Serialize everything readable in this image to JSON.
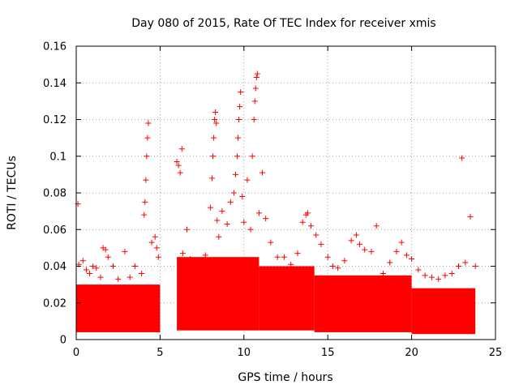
{
  "chart_data": {
    "type": "scatter",
    "title": "Day 080 of 2015, Rate Of TEC Index for receiver xmis",
    "xlabel": "GPS time / hours",
    "ylabel": "ROTI / TECUs",
    "xlim": [
      0,
      25
    ],
    "ylim": [
      0,
      0.16
    ],
    "xticks": [
      0,
      5,
      10,
      15,
      20,
      25
    ],
    "xtick_labels": [
      "0",
      "5",
      "10",
      "15",
      "20",
      "25"
    ],
    "yticks": [
      0,
      0.02,
      0.04,
      0.06,
      0.08,
      0.1,
      0.12,
      0.14,
      0.16
    ],
    "ytick_labels": [
      "0",
      "0.02",
      "0.04",
      "0.06",
      "0.08",
      "0.1",
      "0.12",
      "0.14",
      "0.16"
    ],
    "grid": true,
    "marker": "+",
    "marker_color": "#ff0000",
    "series": [
      {
        "name": "ROTI",
        "x": [
          0.1,
          0.15,
          0.4,
          0.6,
          0.8,
          1.0,
          1.2,
          1.45,
          1.6,
          1.75,
          1.9,
          2.2,
          2.5,
          2.9,
          3.2,
          3.5,
          3.9,
          4.05,
          4.1,
          4.15,
          4.2,
          4.25,
          4.3,
          4.5,
          4.7,
          4.8,
          4.9,
          6.0,
          6.1,
          6.2,
          6.3,
          6.35,
          6.6,
          6.8,
          7.1,
          7.4,
          7.7,
          8.0,
          8.1,
          8.15,
          8.2,
          8.25,
          8.3,
          8.35,
          8.4,
          8.5,
          8.7,
          9.0,
          9.2,
          9.4,
          9.5,
          9.6,
          9.65,
          9.7,
          9.75,
          9.8,
          9.9,
          10.0,
          10.2,
          10.4,
          10.5,
          10.6,
          10.65,
          10.7,
          10.75,
          10.8,
          10.9,
          11.1,
          11.3,
          11.6,
          12.0,
          12.4,
          12.8,
          13.2,
          13.5,
          13.7,
          13.8,
          14.0,
          14.3,
          14.6,
          15.0,
          15.3,
          15.6,
          16.0,
          16.4,
          16.7,
          16.9,
          17.2,
          17.6,
          17.9,
          18.3,
          18.7,
          19.1,
          19.4,
          19.7,
          20.0,
          20.4,
          20.8,
          21.2,
          21.6,
          22.0,
          22.4,
          22.8,
          23.0,
          23.2,
          23.5,
          23.8
        ],
        "y": [
          0.074,
          0.041,
          0.043,
          0.038,
          0.036,
          0.04,
          0.039,
          0.034,
          0.05,
          0.049,
          0.045,
          0.04,
          0.033,
          0.048,
          0.034,
          0.04,
          0.036,
          0.068,
          0.075,
          0.087,
          0.1,
          0.11,
          0.118,
          0.053,
          0.056,
          0.05,
          0.045,
          0.097,
          0.095,
          0.091,
          0.104,
          0.047,
          0.06,
          0.044,
          0.036,
          0.04,
          0.046,
          0.072,
          0.088,
          0.1,
          0.11,
          0.12,
          0.124,
          0.118,
          0.065,
          0.056,
          0.07,
          0.063,
          0.075,
          0.08,
          0.09,
          0.1,
          0.11,
          0.12,
          0.127,
          0.135,
          0.078,
          0.064,
          0.087,
          0.06,
          0.1,
          0.12,
          0.13,
          0.137,
          0.143,
          0.145,
          0.069,
          0.091,
          0.066,
          0.053,
          0.045,
          0.045,
          0.041,
          0.047,
          0.064,
          0.068,
          0.069,
          0.062,
          0.057,
          0.052,
          0.045,
          0.04,
          0.039,
          0.043,
          0.054,
          0.057,
          0.052,
          0.049,
          0.048,
          0.062,
          0.036,
          0.042,
          0.048,
          0.053,
          0.046,
          0.044,
          0.038,
          0.035,
          0.034,
          0.033,
          0.035,
          0.036,
          0.04,
          0.099,
          0.042,
          0.067,
          0.04
        ]
      }
    ],
    "bands": [
      {
        "from": 0.0,
        "to": 5.0,
        "min": 0.004,
        "max": 0.03
      },
      {
        "from": 6.0,
        "to": 10.9,
        "min": 0.005,
        "max": 0.045
      },
      {
        "from": 10.9,
        "to": 14.2,
        "min": 0.005,
        "max": 0.04
      },
      {
        "from": 14.2,
        "to": 20.0,
        "min": 0.004,
        "max": 0.035
      },
      {
        "from": 20.0,
        "to": 23.8,
        "min": 0.003,
        "max": 0.028
      }
    ]
  }
}
